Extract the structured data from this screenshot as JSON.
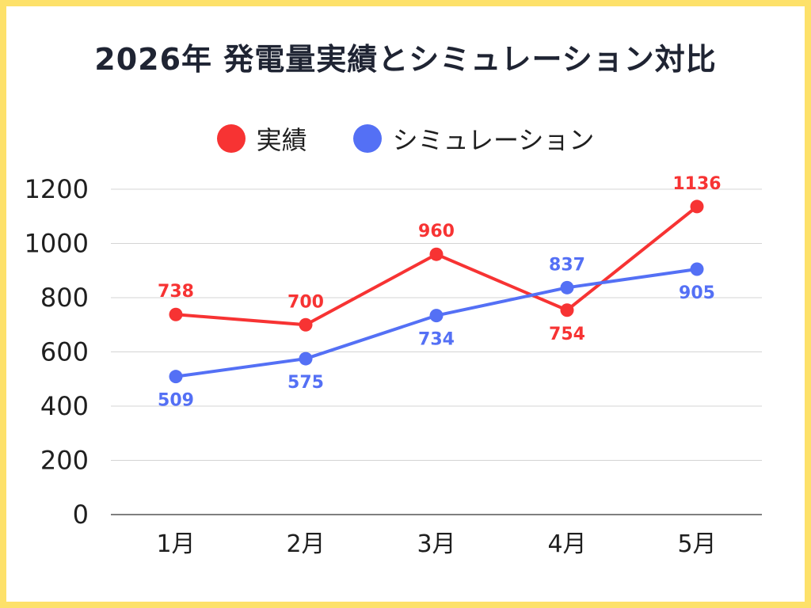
{
  "chart_data": {
    "type": "line",
    "title": "2026年 発電量実績とシミュレーション対比",
    "categories": [
      "1月",
      "2月",
      "3月",
      "4月",
      "5月"
    ],
    "series": [
      {
        "name": "実績",
        "color": "#f73333",
        "values": [
          738,
          700,
          960,
          754,
          1136
        ],
        "label_position": [
          "above",
          "above",
          "above",
          "below",
          "above"
        ]
      },
      {
        "name": "シミュレーション",
        "color": "#5470f5",
        "values": [
          509,
          575,
          734,
          837,
          905
        ],
        "label_position": [
          "below",
          "below",
          "below",
          "above",
          "below"
        ]
      }
    ],
    "ylim": [
      0,
      1200
    ],
    "yticks": [
      0,
      200,
      400,
      600,
      800,
      1000,
      1200
    ],
    "xlabel": "",
    "ylabel": "",
    "grid": true,
    "legend_position": "top-center"
  },
  "colors": {
    "frame": "#fde16a",
    "grid": "#d4d4d4",
    "axis": "#555555",
    "title": "#1f2433"
  }
}
